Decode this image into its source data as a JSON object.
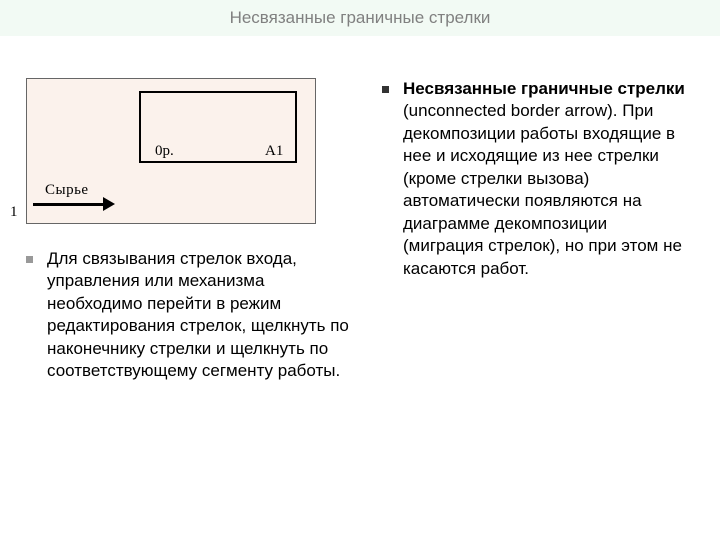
{
  "title": "Несвязанные граничные стрелки",
  "diagram": {
    "label_0p": "0р.",
    "label_a1": "А1",
    "arrow_label": "Сырье",
    "outer_label": "1",
    "bg_color": "#fbf2ec",
    "border_color": "#000000"
  },
  "left_bullet": {
    "text": " Для связывания стрелок входа, управления или механизма необходимо перейти в режим редактирования стрелок, щелкнуть по наконечнику стрелки и щелкнуть по соответствующему сегменту работы."
  },
  "right_bullet": {
    "bold": "Несвязанные граничные стрелки",
    "rest": " (unconnected border arrow). При декомпозиции работы входящие в нее и исходящие из нее стрелки (кроме стрелки вызова) автоматически появляются на диаграмме декомпозиции (миграция стрелок), но при этом не касаются работ."
  },
  "colors": {
    "title_bg": "#f2faf4",
    "title_text": "#808080",
    "body_text": "#000000",
    "bullet_gray": "#999999",
    "bullet_dark": "#333333"
  },
  "fonts": {
    "title_size": 17,
    "body_size": 17,
    "diagram_label_size": 15
  }
}
